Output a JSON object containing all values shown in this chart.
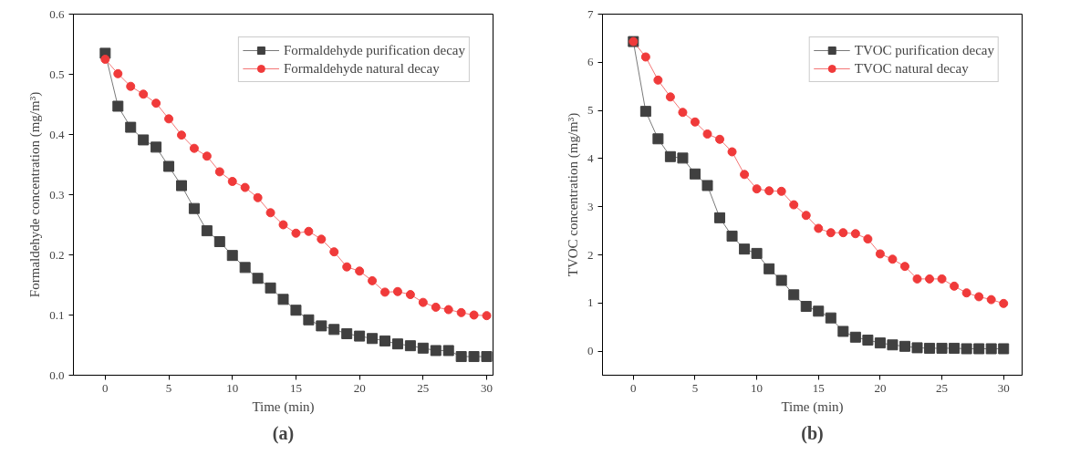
{
  "chart_data": [
    {
      "type": "line",
      "xlabel": "Time (min)",
      "ylabel": "Formaldehyde concentration (mg/m³)",
      "annotations": [
        "(a)"
      ],
      "x": [
        0,
        1,
        2,
        3,
        4,
        5,
        6,
        7,
        8,
        9,
        10,
        11,
        12,
        13,
        14,
        15,
        16,
        17,
        18,
        19,
        20,
        21,
        22,
        23,
        24,
        25,
        26,
        27,
        28,
        29,
        30
      ],
      "xlim": [
        -2.5,
        30.5
      ],
      "ylim": [
        0,
        0.6
      ],
      "xticks": [
        0,
        5,
        10,
        15,
        20,
        25,
        30
      ],
      "yticks": [
        {
          "value": 0,
          "label": "0.0"
        },
        0.1,
        0.2,
        0.3,
        0.4,
        0.5,
        0.6
      ],
      "grid": false,
      "legend": "top right",
      "series": [
        {
          "name": "Formaldehyde purification decay",
          "color": "#404040",
          "marker": "square",
          "values": [
            0.535,
            0.447,
            0.412,
            0.391,
            0.379,
            0.347,
            0.315,
            0.277,
            0.24,
            0.222,
            0.199,
            0.179,
            0.161,
            0.145,
            0.126,
            0.108,
            0.092,
            0.082,
            0.076,
            0.069,
            0.065,
            0.061,
            0.057,
            0.052,
            0.049,
            0.045,
            0.041,
            0.041,
            0.031,
            0.031,
            0.031
          ]
        },
        {
          "name": "Formaldehyde natural decay",
          "color": "#f03a3a",
          "marker": "circle",
          "values": [
            0.525,
            0.501,
            0.48,
            0.467,
            0.452,
            0.426,
            0.399,
            0.377,
            0.364,
            0.338,
            0.322,
            0.312,
            0.295,
            0.27,
            0.25,
            0.236,
            0.239,
            0.226,
            0.205,
            0.18,
            0.173,
            0.157,
            0.138,
            0.139,
            0.134,
            0.121,
            0.113,
            0.109,
            0.104,
            0.1,
            0.099
          ]
        }
      ]
    },
    {
      "type": "line",
      "xlabel": "Time (min)",
      "ylabel": "TVOC concentration (mg/m³)",
      "annotations": [
        "(b)"
      ],
      "x": [
        0,
        1,
        2,
        3,
        4,
        5,
        6,
        7,
        8,
        9,
        10,
        11,
        12,
        13,
        14,
        15,
        16,
        17,
        18,
        19,
        20,
        21,
        22,
        23,
        24,
        25,
        26,
        27,
        28,
        29,
        30
      ],
      "xlim": [
        -2.5,
        31.5
      ],
      "ylim": [
        -0.5,
        7
      ],
      "xticks": [
        0,
        5,
        10,
        15,
        20,
        25,
        30
      ],
      "yticks": [
        0,
        1,
        2,
        3,
        4,
        5,
        6,
        7
      ],
      "grid": false,
      "legend": "top right",
      "series": [
        {
          "name": "TVOC purification decay",
          "color": "#404040",
          "marker": "square",
          "values": [
            6.43,
            4.98,
            4.41,
            4.04,
            4.01,
            3.68,
            3.44,
            2.77,
            2.39,
            2.12,
            2.03,
            1.71,
            1.47,
            1.17,
            0.93,
            0.83,
            0.69,
            0.41,
            0.29,
            0.23,
            0.17,
            0.13,
            0.1,
            0.07,
            0.06,
            0.06,
            0.06,
            0.05,
            0.05,
            0.05,
            0.05
          ]
        },
        {
          "name": "TVOC natural decay",
          "color": "#f03a3a",
          "marker": "circle",
          "values": [
            6.43,
            6.11,
            5.63,
            5.28,
            4.96,
            4.76,
            4.51,
            4.4,
            4.14,
            3.67,
            3.37,
            3.33,
            3.32,
            3.04,
            2.82,
            2.55,
            2.46,
            2.46,
            2.44,
            2.33,
            2.02,
            1.91,
            1.76,
            1.5,
            1.5,
            1.5,
            1.35,
            1.21,
            1.13,
            1.07,
            0.99
          ]
        }
      ]
    }
  ]
}
